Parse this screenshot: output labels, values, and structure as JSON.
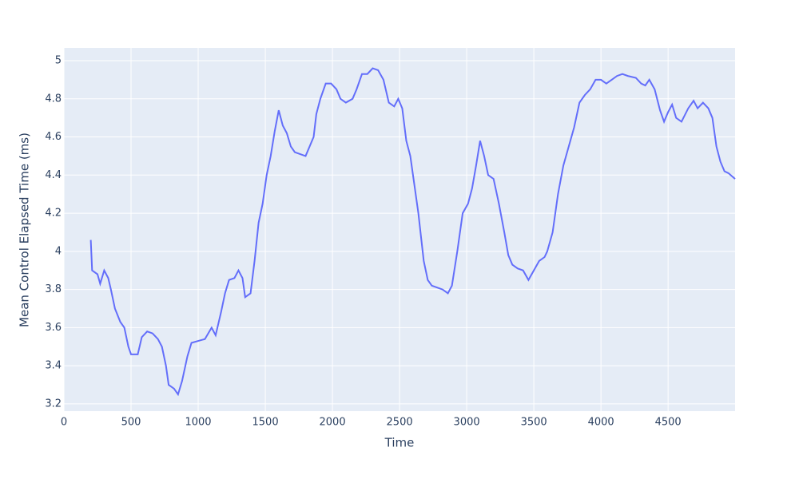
{
  "chart_data": {
    "type": "line",
    "x_label": "Time",
    "y_label": "Mean Control Elapsed Time (ms)",
    "x": [
      200,
      210,
      250,
      270,
      300,
      330,
      350,
      380,
      420,
      450,
      480,
      500,
      550,
      580,
      620,
      660,
      700,
      730,
      760,
      780,
      820,
      850,
      880,
      920,
      950,
      1000,
      1050,
      1100,
      1130,
      1170,
      1200,
      1230,
      1270,
      1300,
      1330,
      1350,
      1390,
      1420,
      1450,
      1480,
      1510,
      1540,
      1570,
      1600,
      1630,
      1660,
      1690,
      1720,
      1760,
      1800,
      1830,
      1860,
      1880,
      1910,
      1950,
      1990,
      2030,
      2060,
      2100,
      2150,
      2180,
      2220,
      2260,
      2300,
      2340,
      2380,
      2420,
      2460,
      2490,
      2520,
      2550,
      2580,
      2610,
      2640,
      2680,
      2710,
      2740,
      2780,
      2820,
      2860,
      2890,
      2930,
      2970,
      3010,
      3040,
      3070,
      3100,
      3130,
      3160,
      3200,
      3240,
      3280,
      3310,
      3340,
      3380,
      3420,
      3460,
      3500,
      3540,
      3580,
      3600,
      3640,
      3680,
      3720,
      3760,
      3800,
      3840,
      3880,
      3920,
      3960,
      4000,
      4040,
      4080,
      4120,
      4160,
      4200,
      4260,
      4300,
      4330,
      4360,
      4400,
      4440,
      4470,
      4500,
      4530,
      4560,
      4600,
      4650,
      4690,
      4720,
      4760,
      4800,
      4830,
      4860,
      4890,
      4920,
      4950,
      4999
    ],
    "series": [
      {
        "name": "Mean Control Elapsed Time",
        "color": "#636efa",
        "values": [
          4.06,
          3.9,
          3.88,
          3.83,
          3.9,
          3.86,
          3.8,
          3.7,
          3.63,
          3.6,
          3.5,
          3.46,
          3.46,
          3.55,
          3.58,
          3.57,
          3.54,
          3.5,
          3.4,
          3.3,
          3.28,
          3.25,
          3.32,
          3.45,
          3.52,
          3.53,
          3.54,
          3.6,
          3.56,
          3.68,
          3.78,
          3.85,
          3.86,
          3.9,
          3.86,
          3.76,
          3.78,
          3.95,
          4.15,
          4.25,
          4.4,
          4.5,
          4.63,
          4.74,
          4.66,
          4.62,
          4.55,
          4.52,
          4.51,
          4.5,
          4.55,
          4.6,
          4.72,
          4.8,
          4.88,
          4.88,
          4.85,
          4.8,
          4.78,
          4.8,
          4.85,
          4.93,
          4.93,
          4.96,
          4.95,
          4.9,
          4.78,
          4.76,
          4.8,
          4.75,
          4.58,
          4.5,
          4.35,
          4.2,
          3.95,
          3.85,
          3.82,
          3.81,
          3.8,
          3.78,
          3.82,
          4.0,
          4.2,
          4.25,
          4.33,
          4.45,
          4.58,
          4.5,
          4.4,
          4.38,
          4.25,
          4.1,
          3.98,
          3.93,
          3.91,
          3.9,
          3.85,
          3.9,
          3.95,
          3.97,
          4.0,
          4.1,
          4.3,
          4.45,
          4.55,
          4.65,
          4.78,
          4.82,
          4.85,
          4.9,
          4.9,
          4.88,
          4.9,
          4.92,
          4.93,
          4.92,
          4.91,
          4.88,
          4.87,
          4.9,
          4.85,
          4.74,
          4.68,
          4.73,
          4.77,
          4.7,
          4.68,
          4.75,
          4.79,
          4.75,
          4.78,
          4.75,
          4.7,
          4.55,
          4.47,
          4.42,
          4.41,
          4.38
        ]
      }
    ],
    "xlim": [
      0,
      4999
    ],
    "xticks": [
      0,
      500,
      1000,
      1500,
      2000,
      2500,
      3000,
      3500,
      4000,
      4500
    ],
    "ylim": [
      3.162,
      5.067
    ],
    "yticks": [
      3.2,
      3.4,
      3.6,
      3.8,
      4,
      4.2,
      4.4,
      4.6,
      4.8,
      5
    ],
    "grid": true
  }
}
